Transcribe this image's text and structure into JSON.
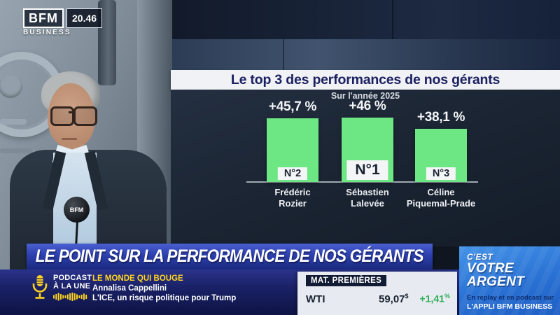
{
  "channel": {
    "logo": "BFM",
    "logo_sub": "BUSINESS",
    "time": "20.46",
    "mic_label": "BFM"
  },
  "chart_data": {
    "type": "bar",
    "title": "Le top 3 des performances de nos gérants",
    "subtitle": "Sur l'année 2025",
    "categories": [
      "Frédéric Rozier",
      "Sébastien Lalevée",
      "Céline Piquemal-Prade"
    ],
    "values": [
      45.7,
      46,
      38.1
    ],
    "value_labels": [
      "+45,7 %",
      "+46 %",
      "+38,1 %"
    ],
    "ranks": [
      "N°2",
      "N°1",
      "N°3"
    ],
    "bar_color": "#6de783",
    "ylabel": "",
    "xlabel": "",
    "ylim": [
      0,
      50
    ],
    "grid": false,
    "legend": "none"
  },
  "headline": "LE POINT SUR LA PERFORMANCE DE NOS GÉRANTS",
  "podcast": {
    "kicker_line1": "PODCAST",
    "kicker_line2": "À LA UNE",
    "show": "LE MONDE QUI BOUGE",
    "author": "Annalisa Cappellini",
    "episode": "L'ICE, un risque politique pour Trump"
  },
  "market": {
    "header": "MAT. PREMIÈRES",
    "symbol": "WTI",
    "price": "59,07",
    "currency": "$",
    "change": "+1,41",
    "change_unit": "%",
    "change_color": "#2fae57"
  },
  "program": {
    "title_line1": "C'EST",
    "title_line2": "VOTRE",
    "title_line3": "ARGENT",
    "replay_text": "En replay et en podcast sur",
    "app_text": "L'APPLI BFM BUSINESS"
  }
}
